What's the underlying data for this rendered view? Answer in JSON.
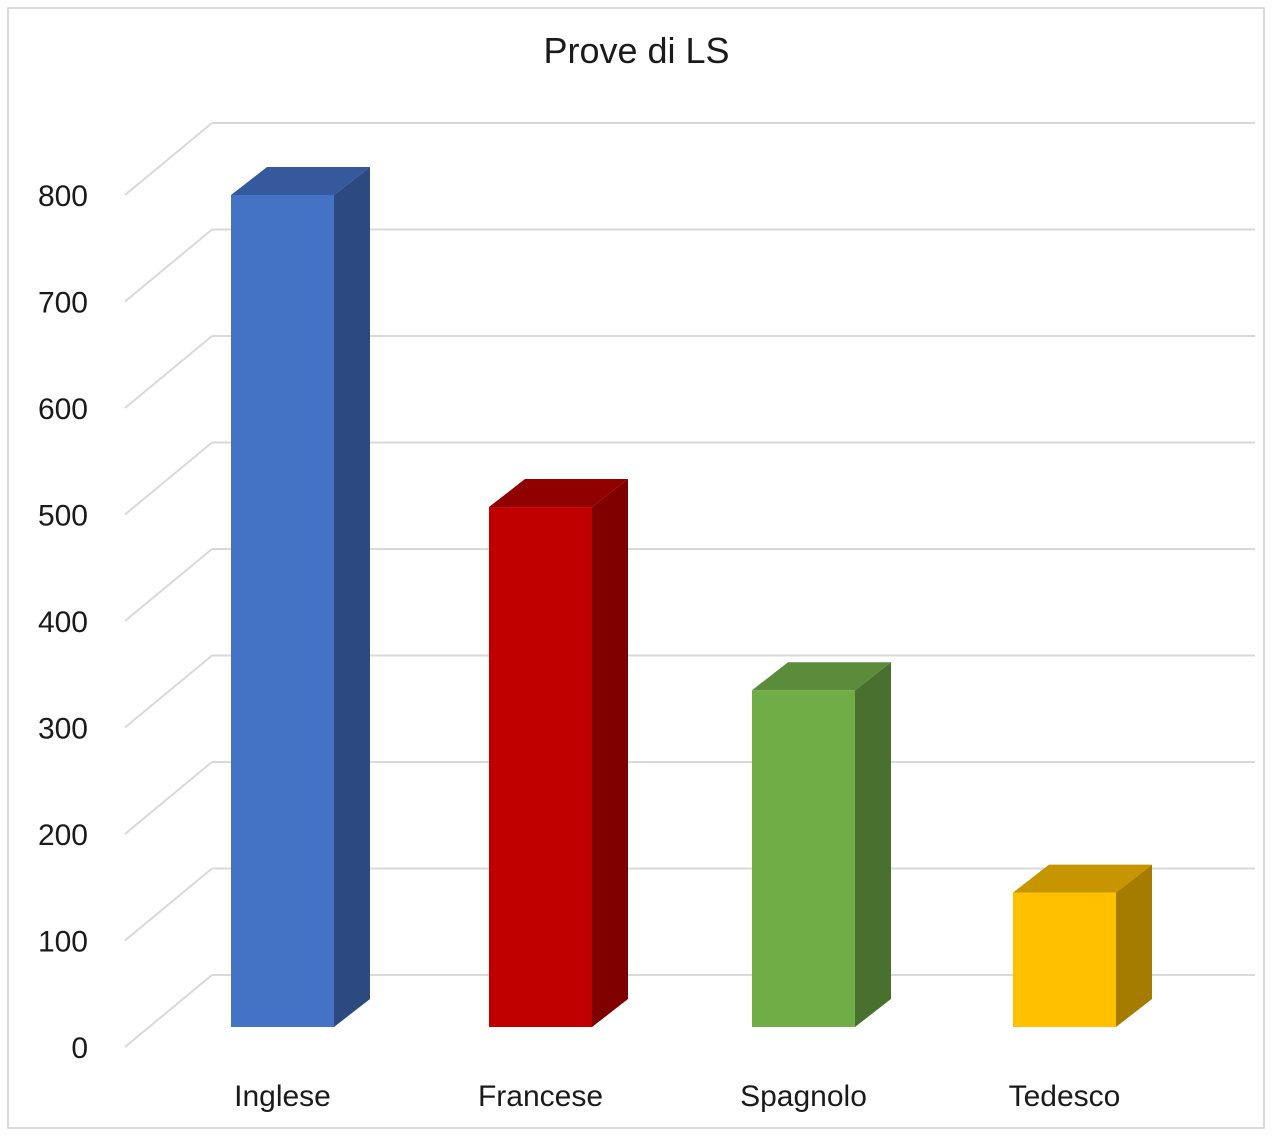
{
  "chart_data": {
    "type": "bar",
    "title": "Prove di LS",
    "xlabel": "",
    "ylabel": "",
    "categories": [
      "Inglese",
      "Francese",
      "Spagnolo",
      "Tedesco"
    ],
    "values": [
      800,
      507,
      335,
      145
    ],
    "ylim": [
      0,
      800
    ],
    "yticks": [
      "0",
      "100",
      "200",
      "300",
      "400",
      "500",
      "600",
      "700",
      "800"
    ],
    "grid": true,
    "legend": "none",
    "colors": {
      "front": [
        "#4472c4",
        "#c00000",
        "#70ad47",
        "#ffc000"
      ],
      "side": [
        "#2c4a80",
        "#800000",
        "#4a7030",
        "#a67c00"
      ],
      "top": [
        "#35599c",
        "#900000",
        "#5b8c3a",
        "#c79500"
      ],
      "gridline": "#d9d9d9"
    }
  }
}
